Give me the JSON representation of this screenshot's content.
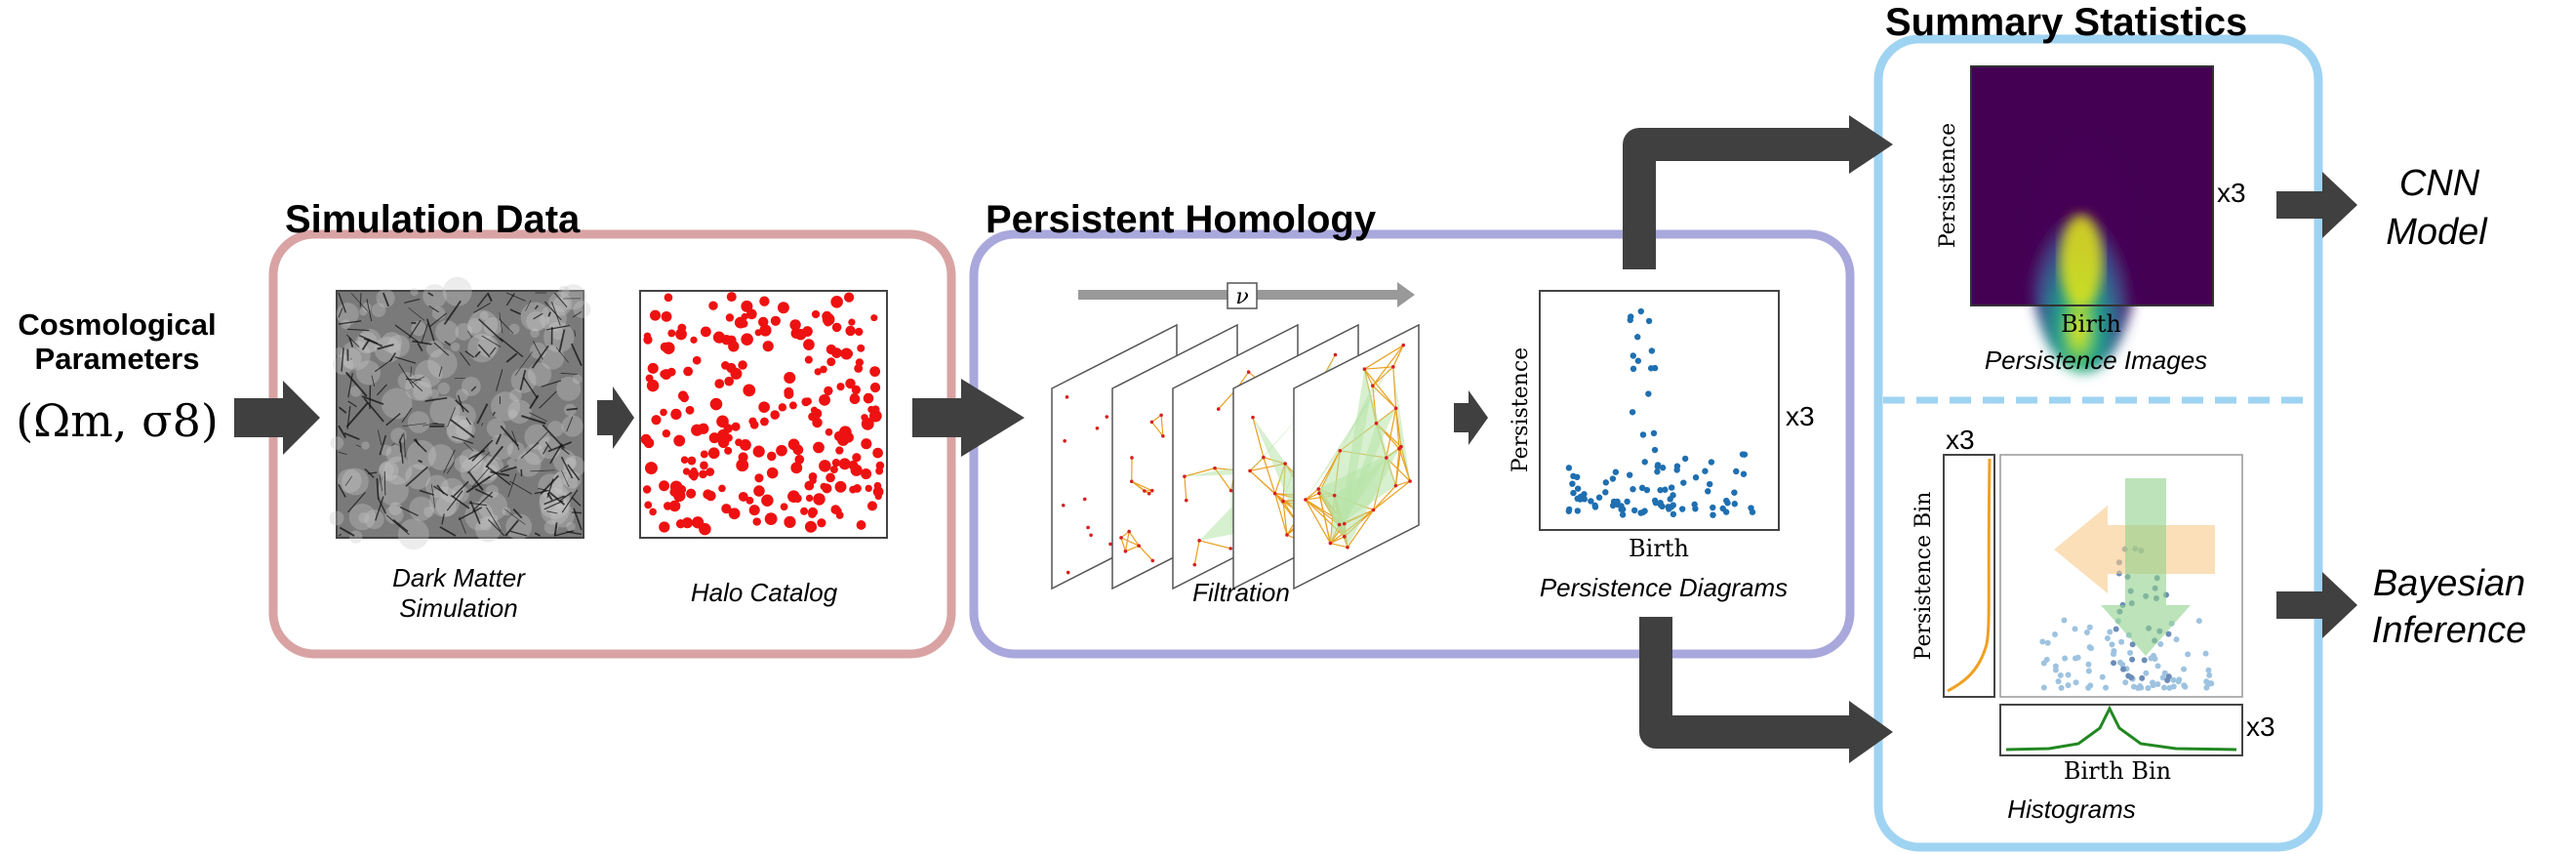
{
  "inputs": {
    "heading": "Cosmological Parameters",
    "heading_line1": "Cosmological",
    "heading_line2": "Parameters",
    "symbol": "(Ωm, σ8)"
  },
  "simulation_data": {
    "title": "Simulation Data",
    "dark_matter_label_line1": "Dark Matter",
    "dark_matter_label_line2": "Simulation",
    "halo_label": "Halo Catalog"
  },
  "persistent_homology": {
    "title": "Persistent Homology",
    "filtration_label": "Filtration",
    "nu_symbol": "ν",
    "diagram_label": "Persistence Diagrams",
    "diagram_xlabel": "Birth",
    "diagram_ylabel": "Persistence",
    "multiplier": "x3"
  },
  "summary_statistics": {
    "title": "Summary Statistics",
    "image_label": "Persistence Images",
    "image_xlabel": "Birth",
    "image_ylabel": "Persistence",
    "image_multiplier": "x3",
    "hist_label": "Histograms",
    "hist_xlabel": "Birth Bin",
    "hist_ylabel": "Persistence Bin",
    "hist_multiplier_top": "x3",
    "hist_multiplier_right": "x3"
  },
  "outputs": {
    "cnn_line1": "CNN",
    "cnn_line2": "Model",
    "bayes_line1": "Bayesian",
    "bayes_line2": "Inference"
  },
  "colors": {
    "sim_box": "#d9a3a3",
    "ph_box": "#a9a8dc",
    "summary_box": "#9fd3f2",
    "arrow": "#404040",
    "halo": "#ee1111",
    "diagram_points": "#1f6fb0",
    "histogram_orange": "#f0a020",
    "histogram_green": "#228822"
  }
}
